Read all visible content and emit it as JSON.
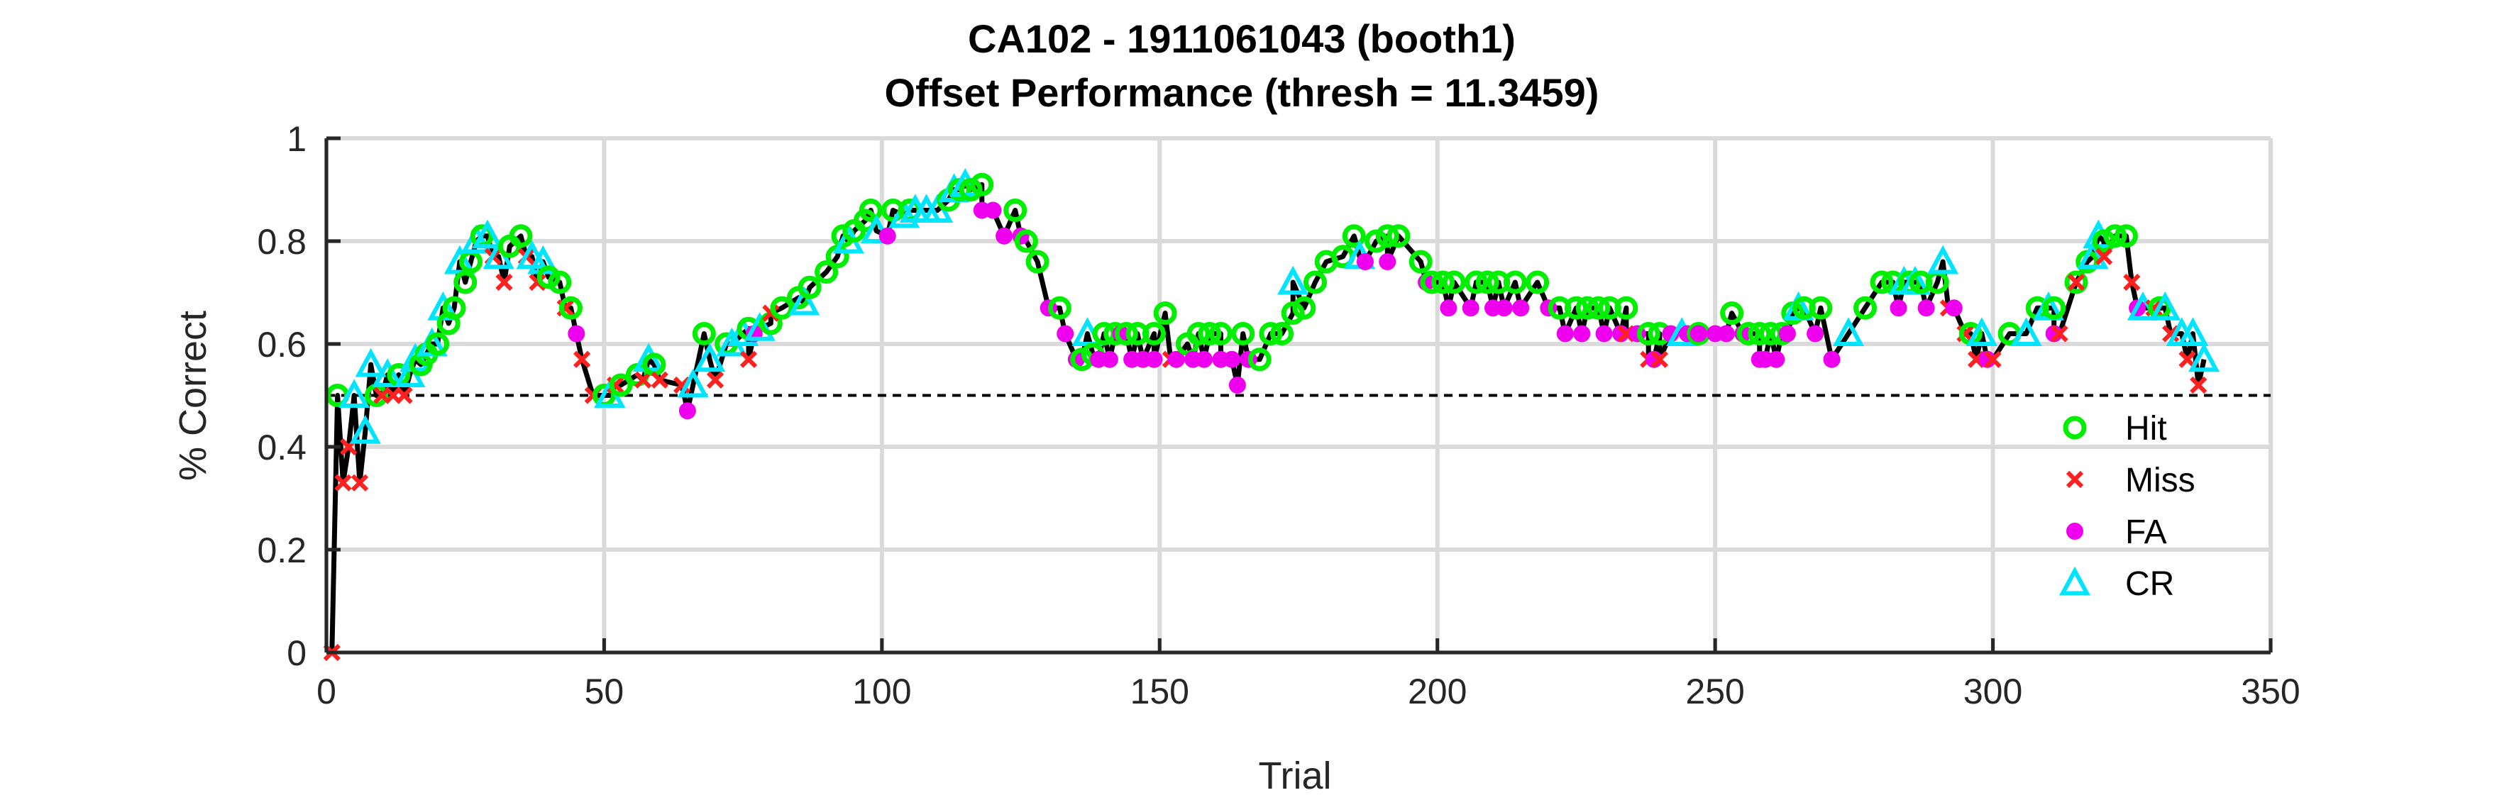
{
  "chart_data": {
    "type": "line",
    "title_line1": "CA102 - 1911061043 (booth1)",
    "title_line2": "Offset Performance (thresh = 11.3459)",
    "xlabel": "Trial",
    "ylabel": "% Correct",
    "xlim": [
      0,
      350
    ],
    "ylim": [
      0,
      1
    ],
    "xticks": [
      0,
      50,
      100,
      150,
      200,
      250,
      300,
      350
    ],
    "yticks": [
      0,
      0.2,
      0.4,
      0.6,
      0.8,
      1
    ],
    "grid": true,
    "legend_position": "bottom-right",
    "threshold_line": 0.5,
    "legend": [
      {
        "label": "Hit",
        "marker": "circle-open",
        "color": "#00ee00"
      },
      {
        "label": "Miss",
        "marker": "x",
        "color": "#ff2020"
      },
      {
        "label": "FA",
        "marker": "circle-filled",
        "color": "#ee00ee"
      },
      {
        "label": "CR",
        "marker": "triangle-open",
        "color": "#00e5ff"
      }
    ],
    "series": [
      {
        "name": "Hit",
        "type": "H",
        "points": [
          [
            2,
            0.5
          ],
          [
            9,
            0.5
          ],
          [
            13,
            0.54
          ],
          [
            17,
            0.56
          ],
          [
            18,
            0.58
          ],
          [
            20,
            0.6
          ],
          [
            22,
            0.64
          ],
          [
            23,
            0.67
          ],
          [
            25,
            0.72
          ],
          [
            26,
            0.76
          ],
          [
            28,
            0.81
          ],
          [
            33,
            0.79
          ],
          [
            35,
            0.81
          ],
          [
            40,
            0.73
          ],
          [
            42,
            0.72
          ],
          [
            44,
            0.67
          ],
          [
            50,
            0.5
          ],
          [
            53,
            0.52
          ],
          [
            56,
            0.54
          ],
          [
            59,
            0.56
          ],
          [
            68,
            0.62
          ],
          [
            72,
            0.6
          ],
          [
            76,
            0.63
          ],
          [
            80,
            0.64
          ],
          [
            82,
            0.67
          ],
          [
            85,
            0.69
          ],
          [
            87,
            0.71
          ],
          [
            90,
            0.74
          ],
          [
            92,
            0.77
          ],
          [
            93,
            0.81
          ],
          [
            95,
            0.82
          ],
          [
            97,
            0.84
          ],
          [
            98,
            0.86
          ],
          [
            102,
            0.86
          ],
          [
            105,
            0.86
          ],
          [
            112,
            0.88
          ],
          [
            114,
            0.9
          ],
          [
            116,
            0.9
          ],
          [
            118,
            0.91
          ],
          [
            124,
            0.86
          ],
          [
            126,
            0.8
          ],
          [
            128,
            0.76
          ],
          [
            132,
            0.67
          ],
          [
            136,
            0.57
          ],
          [
            138,
            0.58
          ],
          [
            140,
            0.62
          ],
          [
            142,
            0.62
          ],
          [
            144,
            0.62
          ],
          [
            146,
            0.62
          ],
          [
            149,
            0.62
          ],
          [
            151,
            0.66
          ],
          [
            155,
            0.6
          ],
          [
            157,
            0.62
          ],
          [
            159,
            0.62
          ],
          [
            161,
            0.62
          ],
          [
            165,
            0.62
          ],
          [
            168,
            0.57
          ],
          [
            170,
            0.62
          ],
          [
            172,
            0.62
          ],
          [
            174,
            0.66
          ],
          [
            176,
            0.67
          ],
          [
            178,
            0.72
          ],
          [
            180,
            0.76
          ],
          [
            183,
            0.77
          ],
          [
            185,
            0.81
          ],
          [
            189,
            0.8
          ],
          [
            191,
            0.81
          ],
          [
            193,
            0.81
          ],
          [
            197,
            0.76
          ],
          [
            199,
            0.72
          ],
          [
            201,
            0.72
          ],
          [
            203,
            0.72
          ],
          [
            207,
            0.72
          ],
          [
            209,
            0.72
          ],
          [
            211,
            0.72
          ],
          [
            214,
            0.72
          ],
          [
            218,
            0.72
          ],
          [
            222,
            0.67
          ],
          [
            225,
            0.67
          ],
          [
            227,
            0.67
          ],
          [
            229,
            0.67
          ],
          [
            231,
            0.67
          ],
          [
            234,
            0.67
          ],
          [
            238,
            0.62
          ],
          [
            240,
            0.62
          ],
          [
            247,
            0.62
          ],
          [
            253,
            0.66
          ],
          [
            256,
            0.62
          ],
          [
            258,
            0.62
          ],
          [
            260,
            0.62
          ],
          [
            262,
            0.62
          ],
          [
            264,
            0.66
          ],
          [
            266,
            0.67
          ],
          [
            269,
            0.67
          ],
          [
            277,
            0.67
          ],
          [
            280,
            0.72
          ],
          [
            282,
            0.72
          ],
          [
            285,
            0.72
          ],
          [
            287,
            0.72
          ],
          [
            290,
            0.72
          ],
          [
            296,
            0.62
          ],
          [
            303,
            0.62
          ],
          [
            308,
            0.67
          ],
          [
            311,
            0.67
          ],
          [
            315,
            0.72
          ],
          [
            317,
            0.76
          ],
          [
            320,
            0.8
          ],
          [
            322,
            0.81
          ],
          [
            324,
            0.81
          ],
          [
            330,
            0.67
          ]
        ]
      },
      {
        "name": "Miss",
        "type": "M",
        "points": [
          [
            1,
            0.0
          ],
          [
            3,
            0.33
          ],
          [
            4,
            0.4
          ],
          [
            6,
            0.33
          ],
          [
            10,
            0.5
          ],
          [
            12,
            0.5
          ],
          [
            14,
            0.5
          ],
          [
            30,
            0.77
          ],
          [
            32,
            0.72
          ],
          [
            36,
            0.77
          ],
          [
            38,
            0.72
          ],
          [
            43,
            0.67
          ],
          [
            46,
            0.57
          ],
          [
            48,
            0.5
          ],
          [
            52,
            0.52
          ],
          [
            57,
            0.53
          ],
          [
            60,
            0.53
          ],
          [
            64,
            0.52
          ],
          [
            70,
            0.53
          ],
          [
            76,
            0.57
          ],
          [
            80,
            0.66
          ],
          [
            152,
            0.57
          ],
          [
            234,
            0.62
          ],
          [
            238,
            0.57
          ],
          [
            240,
            0.57
          ],
          [
            292,
            0.67
          ],
          [
            295,
            0.62
          ],
          [
            297,
            0.57
          ],
          [
            300,
            0.57
          ],
          [
            312,
            0.62
          ],
          [
            315,
            0.72
          ],
          [
            320,
            0.77
          ],
          [
            325,
            0.72
          ],
          [
            329,
            0.67
          ],
          [
            332,
            0.62
          ],
          [
            335,
            0.57
          ],
          [
            337,
            0.52
          ]
        ]
      },
      {
        "name": "FA",
        "type": "F",
        "points": [
          [
            45,
            0.62
          ],
          [
            65,
            0.47
          ],
          [
            77,
            0.62
          ],
          [
            101,
            0.81
          ],
          [
            118,
            0.86
          ],
          [
            120,
            0.86
          ],
          [
            122,
            0.81
          ],
          [
            125,
            0.81
          ],
          [
            130,
            0.67
          ],
          [
            133,
            0.62
          ],
          [
            135,
            0.57
          ],
          [
            139,
            0.57
          ],
          [
            141,
            0.57
          ],
          [
            143,
            0.62
          ],
          [
            145,
            0.57
          ],
          [
            147,
            0.57
          ],
          [
            149,
            0.57
          ],
          [
            153,
            0.57
          ],
          [
            156,
            0.57
          ],
          [
            158,
            0.57
          ],
          [
            161,
            0.57
          ],
          [
            163,
            0.57
          ],
          [
            164,
            0.52
          ],
          [
            166,
            0.57
          ],
          [
            187,
            0.76
          ],
          [
            191,
            0.76
          ],
          [
            198,
            0.72
          ],
          [
            202,
            0.67
          ],
          [
            206,
            0.67
          ],
          [
            210,
            0.67
          ],
          [
            212,
            0.67
          ],
          [
            215,
            0.67
          ],
          [
            220,
            0.67
          ],
          [
            223,
            0.62
          ],
          [
            226,
            0.62
          ],
          [
            230,
            0.62
          ],
          [
            233,
            0.62
          ],
          [
            236,
            0.62
          ],
          [
            239,
            0.57
          ],
          [
            242,
            0.62
          ],
          [
            245,
            0.62
          ],
          [
            247,
            0.62
          ],
          [
            250,
            0.62
          ],
          [
            252,
            0.62
          ],
          [
            255,
            0.62
          ],
          [
            258,
            0.57
          ],
          [
            259,
            0.57
          ],
          [
            261,
            0.57
          ],
          [
            263,
            0.62
          ],
          [
            268,
            0.62
          ],
          [
            271,
            0.57
          ],
          [
            283,
            0.67
          ],
          [
            288,
            0.67
          ],
          [
            293,
            0.67
          ],
          [
            299,
            0.57
          ],
          [
            311,
            0.62
          ],
          [
            326,
            0.67
          ]
        ]
      },
      {
        "name": "CR",
        "type": "C",
        "points": [
          [
            5,
            0.5
          ],
          [
            7,
            0.43
          ],
          [
            8,
            0.56
          ],
          [
            11,
            0.54
          ],
          [
            15,
            0.54
          ],
          [
            16,
            0.57
          ],
          [
            19,
            0.6
          ],
          [
            21,
            0.67
          ],
          [
            24,
            0.76
          ],
          [
            27,
            0.8
          ],
          [
            29,
            0.81
          ],
          [
            31,
            0.77
          ],
          [
            37,
            0.77
          ],
          [
            39,
            0.76
          ],
          [
            51,
            0.5
          ],
          [
            58,
            0.57
          ],
          [
            66,
            0.52
          ],
          [
            69,
            0.57
          ],
          [
            73,
            0.6
          ],
          [
            75,
            0.62
          ],
          [
            78,
            0.63
          ],
          [
            86,
            0.68
          ],
          [
            94,
            0.8
          ],
          [
            99,
            0.82
          ],
          [
            104,
            0.85
          ],
          [
            106,
            0.86
          ],
          [
            108,
            0.86
          ],
          [
            110,
            0.86
          ],
          [
            113,
            0.9
          ],
          [
            115,
            0.91
          ],
          [
            137,
            0.62
          ],
          [
            174,
            0.72
          ],
          [
            186,
            0.77
          ],
          [
            244,
            0.62
          ],
          [
            265,
            0.67
          ],
          [
            274,
            0.62
          ],
          [
            284,
            0.72
          ],
          [
            286,
            0.72
          ],
          [
            291,
            0.76
          ],
          [
            298,
            0.62
          ],
          [
            306,
            0.62
          ],
          [
            310,
            0.67
          ],
          [
            318,
            0.77
          ],
          [
            319,
            0.81
          ],
          [
            327,
            0.67
          ],
          [
            331,
            0.67
          ],
          [
            334,
            0.62
          ],
          [
            336,
            0.62
          ],
          [
            338,
            0.57
          ]
        ]
      }
    ]
  }
}
